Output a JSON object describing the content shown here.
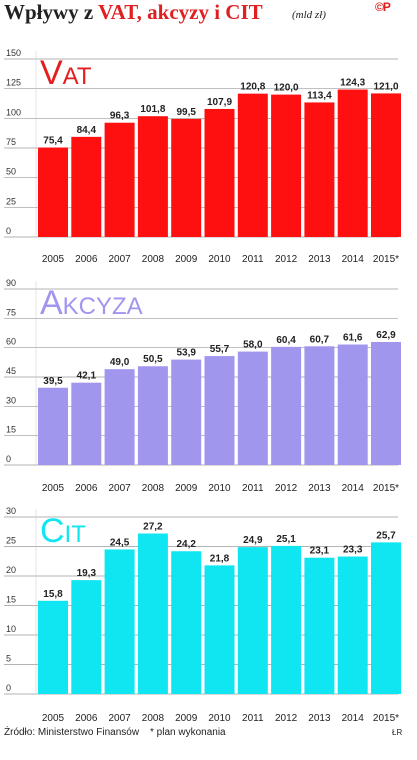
{
  "header": {
    "title_prefix": "Wpływy z ",
    "title_accent": "VAT, akcyzy i CIT",
    "unit": "(mld zł)",
    "logo": "©P"
  },
  "footer": {
    "source": "Źródło: Ministerstwo Finansów",
    "footnote": "* plan wykonania",
    "credit": "ŁR"
  },
  "chart_data": [
    {
      "type": "bar",
      "title": "Vat",
      "color": "#ff1010",
      "title_color": "#e41e1e",
      "categories": [
        "2005",
        "2006",
        "2007",
        "2008",
        "2009",
        "2010",
        "2011",
        "2012",
        "2013",
        "2014",
        "2015*"
      ],
      "values": [
        75.4,
        84.4,
        96.3,
        101.8,
        99.5,
        107.9,
        120.8,
        120.0,
        113.4,
        124.3,
        121.0
      ],
      "value_labels": [
        "75,4",
        "84,4",
        "96,3",
        "101,8",
        "99,5",
        "107,9",
        "120,8",
        "120,0",
        "113,4",
        "124,3",
        "121,0"
      ],
      "yticks": [
        0,
        25,
        50,
        75,
        100,
        125,
        150
      ],
      "ylim": [
        0,
        150
      ],
      "grid": true
    },
    {
      "type": "bar",
      "title": "Akcyza",
      "color": "#a196ee",
      "title_color": "#a196ee",
      "categories": [
        "2005",
        "2006",
        "2007",
        "2008",
        "2009",
        "2010",
        "2011",
        "2012",
        "2013",
        "2014",
        "2015*"
      ],
      "values": [
        39.5,
        42.1,
        49.0,
        50.5,
        53.9,
        55.7,
        58.0,
        60.4,
        60.7,
        61.6,
        62.9
      ],
      "value_labels": [
        "39,5",
        "42,1",
        "49,0",
        "50,5",
        "53,9",
        "55,7",
        "58,0",
        "60,4",
        "60,7",
        "61,6",
        "62,9"
      ],
      "yticks": [
        0,
        15,
        30,
        45,
        60,
        75,
        90
      ],
      "ylim": [
        0,
        90
      ],
      "grid": true
    },
    {
      "type": "bar",
      "title": "Cit",
      "color": "#10e6f2",
      "title_color": "#10e6f2",
      "categories": [
        "2005",
        "2006",
        "2007",
        "2008",
        "2009",
        "2010",
        "2011",
        "2012",
        "2013",
        "2014",
        "2015*"
      ],
      "values": [
        15.8,
        19.3,
        24.5,
        27.2,
        24.2,
        21.8,
        24.9,
        25.1,
        23.1,
        23.3,
        25.7
      ],
      "value_labels": [
        "15,8",
        "19,3",
        "24,5",
        "27,2",
        "24,2",
        "21,8",
        "24,9",
        "25,1",
        "23,1",
        "23,3",
        "25,7"
      ],
      "yticks": [
        0,
        5,
        10,
        15,
        20,
        25,
        30
      ],
      "ylim": [
        0,
        30
      ],
      "grid": true
    }
  ]
}
